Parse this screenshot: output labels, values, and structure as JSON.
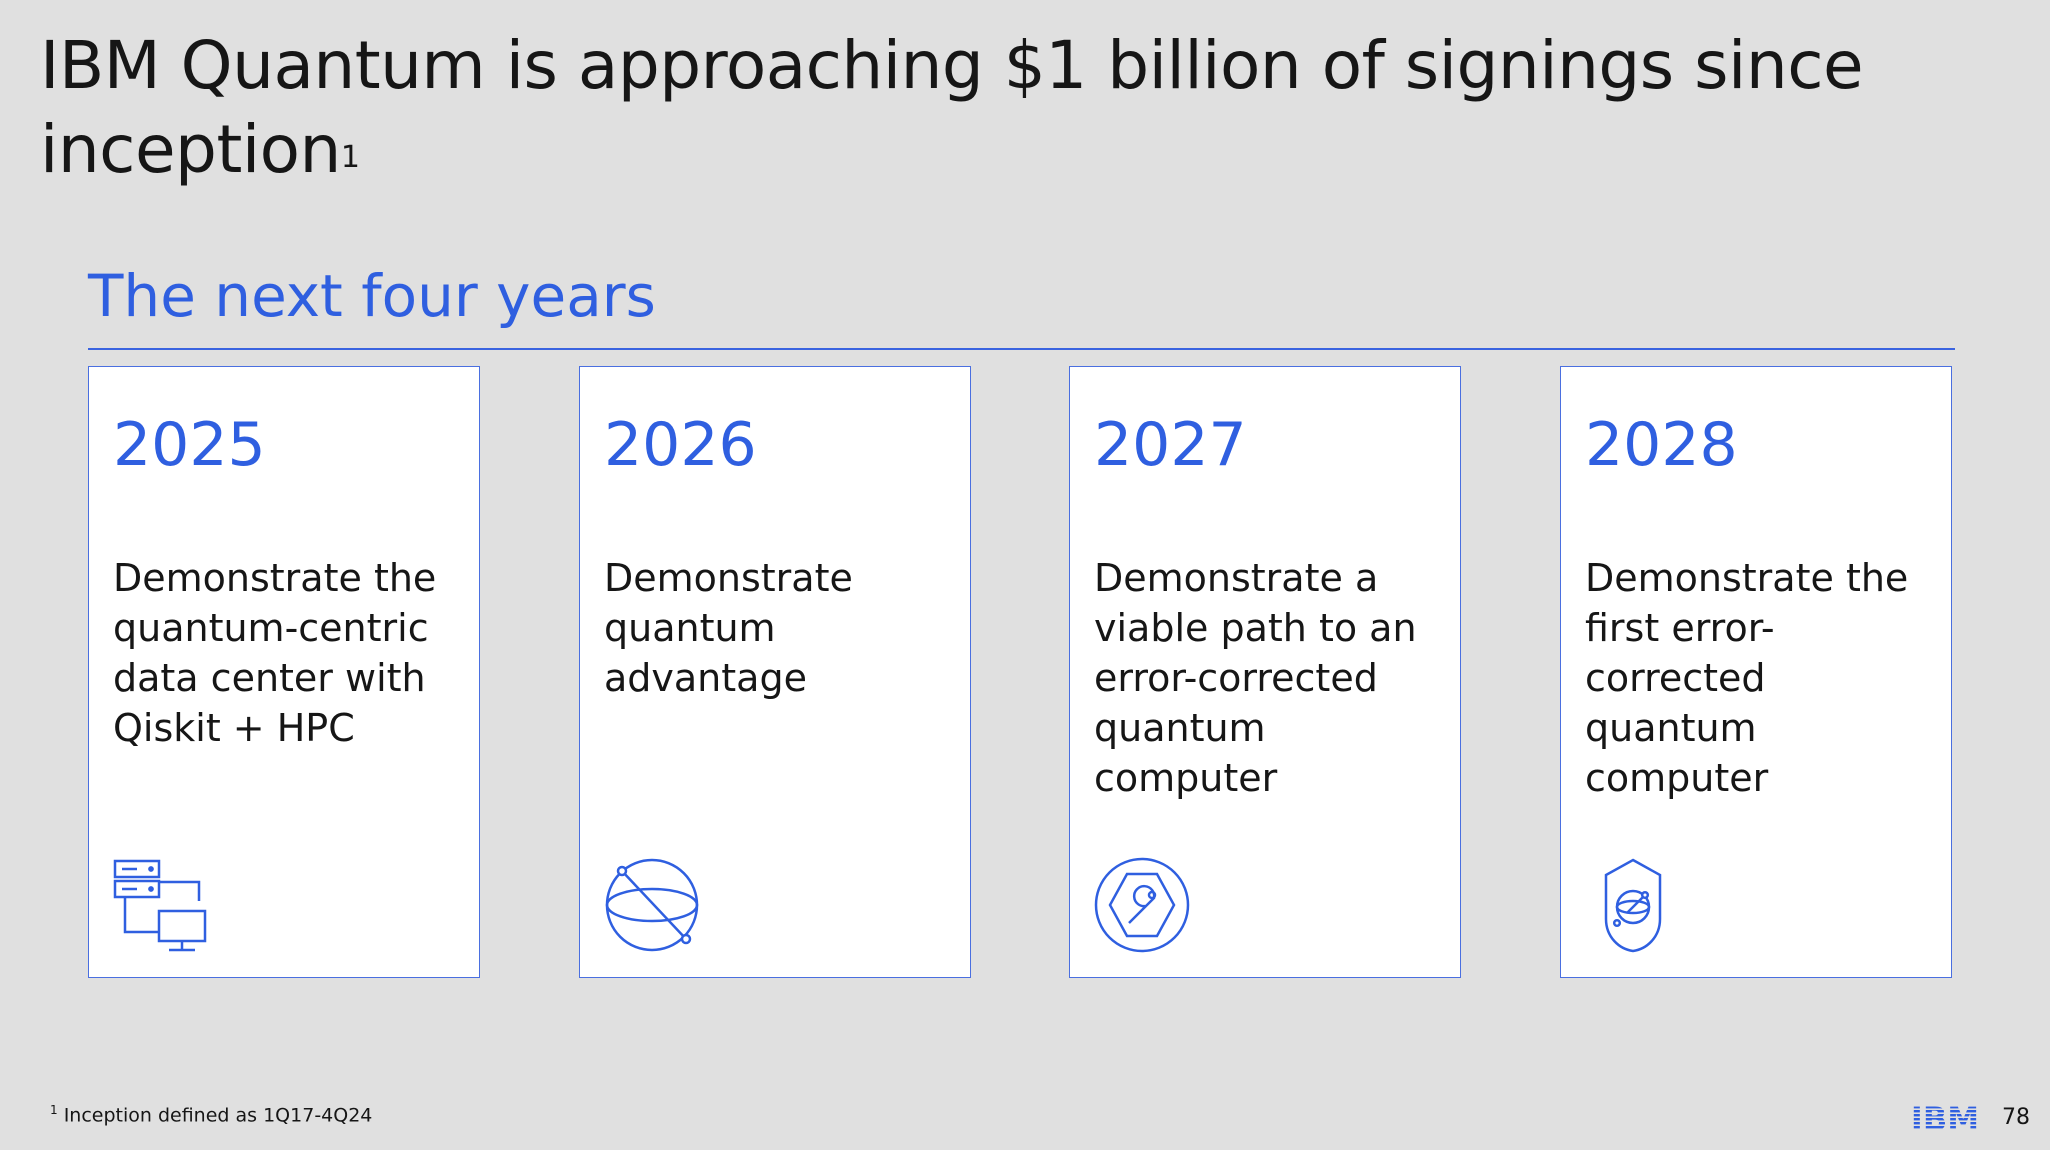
{
  "title": {
    "text": "IBM Quantum is approaching $1 billion of signings since inception",
    "footnote_marker": "1"
  },
  "subtitle": "The next four years",
  "cards": [
    {
      "year": "2025",
      "text": "Demonstrate the quantum-centric data center with Qiskit + HPC",
      "icon": "data-center-icon"
    },
    {
      "year": "2026",
      "text": "Demonstrate quantum advantage",
      "icon": "qubit-sphere-icon"
    },
    {
      "year": "2027",
      "text": "Demonstrate a viable path to an error-corrected quantum computer",
      "icon": "wrench-hexagon-icon"
    },
    {
      "year": "2028",
      "text": "Demonstrate the first error-corrected quantum computer",
      "icon": "shield-sphere-icon"
    }
  ],
  "footnote": {
    "marker": "1",
    "text": "Inception defined as 1Q17-4Q24"
  },
  "logo": "IBM",
  "page_number": "78",
  "colors": {
    "background": "#e0e0e0",
    "accent_blue": "#2f5fe0",
    "text": "#161616",
    "card": "#ffffff"
  }
}
